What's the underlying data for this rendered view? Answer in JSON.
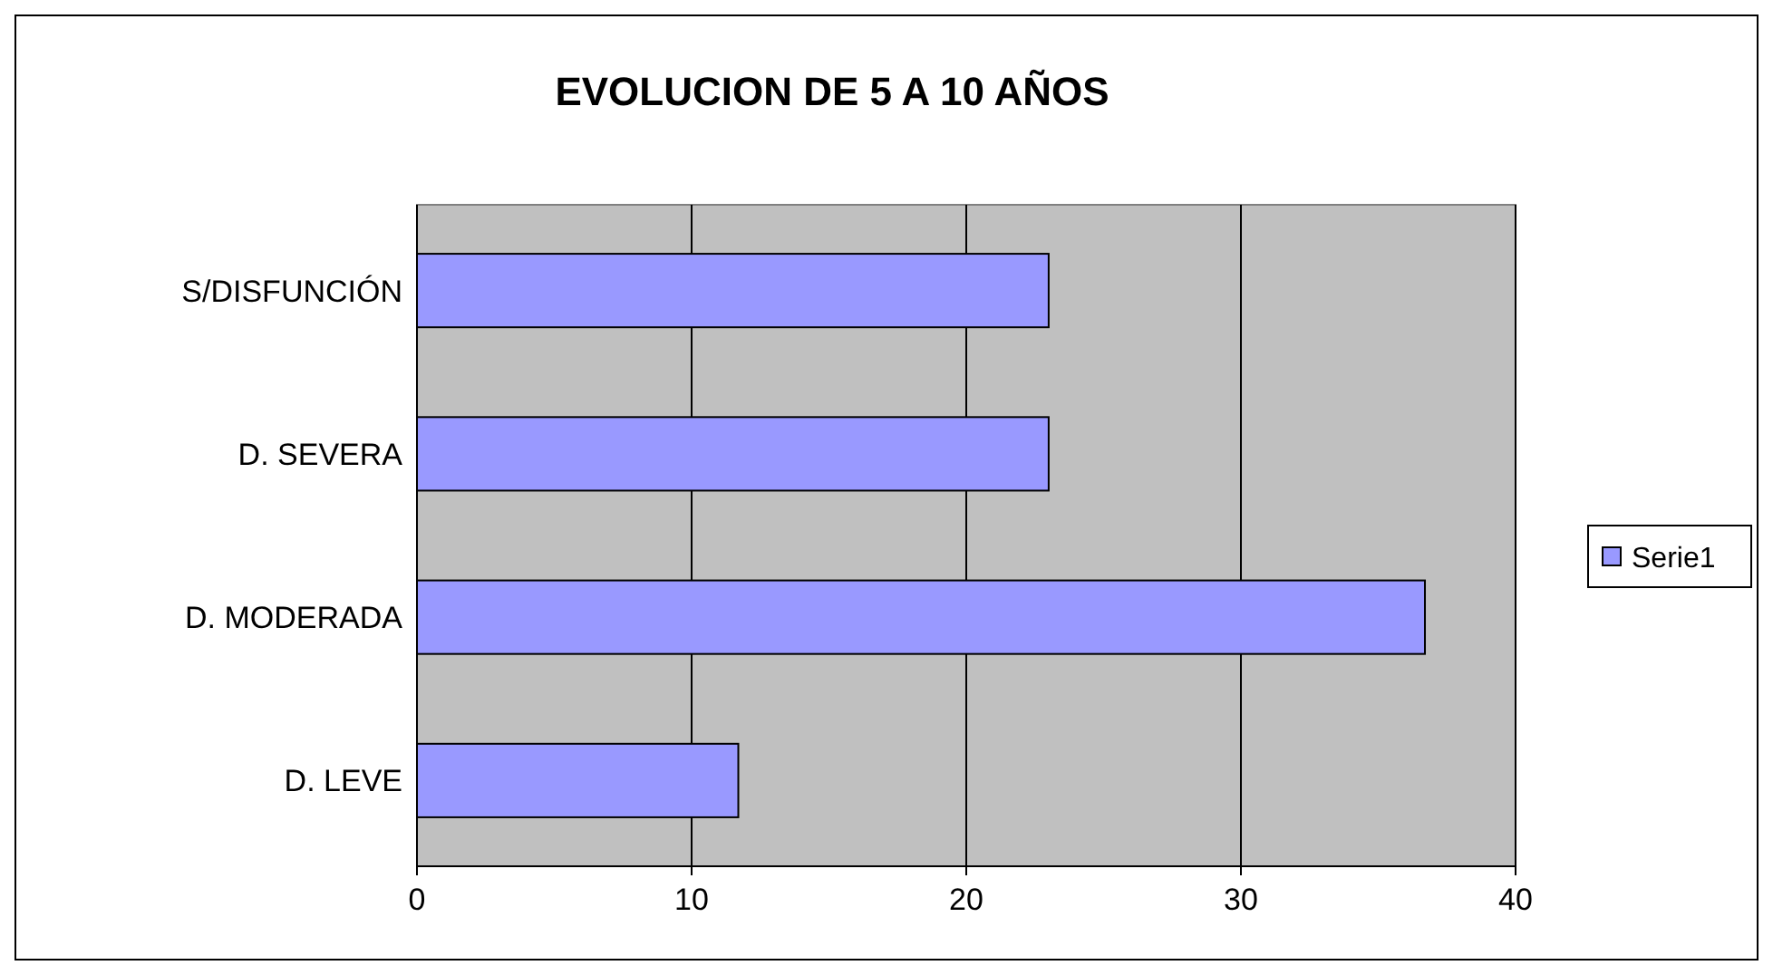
{
  "chart_data": {
    "type": "bar",
    "orientation": "horizontal",
    "title": "EVOLUCION DE 5 A 10 AÑOS",
    "categories": [
      "S/DISFUNCIÓN",
      "D. SEVERA",
      "D. MODERADA",
      "D. LEVE"
    ],
    "series": [
      {
        "name": "Serie1",
        "color": "#9999ff",
        "values": [
          23,
          23,
          36.7,
          11.7
        ]
      }
    ],
    "xlim": [
      0,
      40
    ],
    "xticks": [
      0,
      10,
      20,
      30,
      40
    ],
    "grid": "x",
    "legend": "right"
  }
}
